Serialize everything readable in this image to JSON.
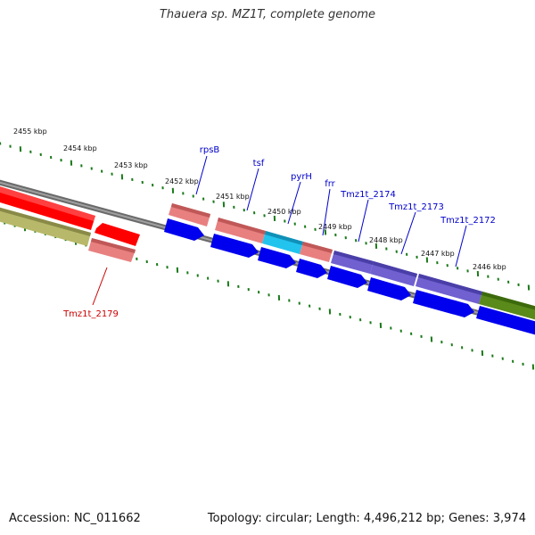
{
  "title": "Thauera sp. MZ1T, complete genome",
  "footer": {
    "accession": "Accession: NC_011662",
    "summary": "Topology: circular; Length: 4,496,212 bp; Genes: 3,974"
  },
  "kbp_labels": [
    "2455 kbp",
    "2454 kbp",
    "2453 kbp",
    "2452 kbp",
    "2451 kbp",
    "2450 kbp",
    "2449 kbp",
    "2448 kbp",
    "2447 kbp",
    "2446 kbp"
  ],
  "gene_labels": [
    "rpsB",
    "tsf",
    "pyrH",
    "frr",
    "Tmz1t_2174",
    "Tmz1t_2173",
    "Tmz1t_2172",
    "Tmz1t_2179"
  ],
  "colors": {
    "backbone": "#7f7f7f",
    "tick": "#1a7a1a",
    "cds_blue": "#0000ee",
    "rrna_pink": "#e88080",
    "red_gene": "#ff0000",
    "cyan": "#22c4ee",
    "purple": "#7060d0",
    "olive_green": "#5a8a1a",
    "khaki": "#b8b86a",
    "label_blue": "#0000cc",
    "label_red": "#cc0000"
  }
}
